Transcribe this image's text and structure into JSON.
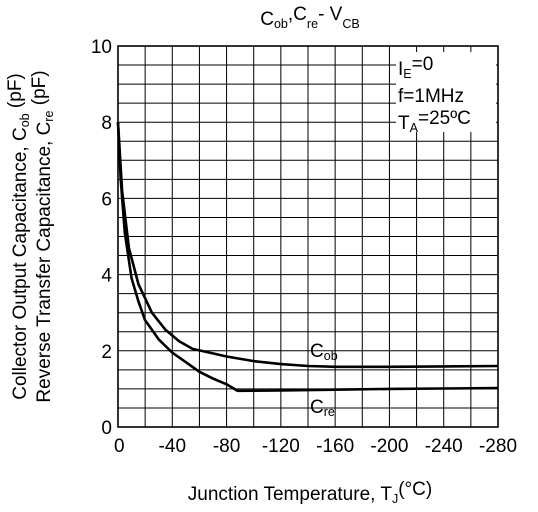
{
  "chart_data": {
    "type": "line",
    "title": {
      "parts": [
        {
          "text": "C",
          "sub": false
        },
        {
          "text": "ob",
          "sub": true
        },
        {
          "text": ",C",
          "sub": false
        },
        {
          "text": "re",
          "sub": true
        },
        {
          "text": "- V",
          "sub": false
        },
        {
          "text": "CB",
          "sub": true
        }
      ]
    },
    "xlabel": {
      "parts": [
        {
          "text": "Junction Temperature, T",
          "sub": false
        },
        {
          "text": "J",
          "sub": true
        },
        {
          "text": "(°C)",
          "sub": false
        }
      ]
    },
    "ylabel_lines": [
      {
        "parts": [
          {
            "text": "Collector Output Capacitance, C",
            "sub": false
          },
          {
            "text": "ob",
            "sub": true
          },
          {
            "text": " (pF)",
            "sub": false
          }
        ]
      },
      {
        "parts": [
          {
            "text": "Reverse Transfer Capacitance, C",
            "sub": false
          },
          {
            "text": "re",
            "sub": true
          },
          {
            "text": " (pF)",
            "sub": false
          }
        ]
      }
    ],
    "xlim": [
      0,
      -280
    ],
    "ylim": [
      0,
      10
    ],
    "x_ticks": [
      "0",
      "-40",
      "-80",
      "-120",
      "-160",
      "-200",
      "-240",
      "-280"
    ],
    "y_ticks": [
      "0",
      "2",
      "4",
      "6",
      "8",
      "10"
    ],
    "grid": true,
    "conditions": [
      {
        "parts": [
          {
            "text": "I",
            "sub": false
          },
          {
            "text": "E",
            "sub": true
          },
          {
            "text": "=0",
            "sub": false
          }
        ]
      },
      {
        "parts": [
          {
            "text": "f=1MHz",
            "sub": false
          }
        ]
      },
      {
        "parts": [
          {
            "text": "T",
            "sub": false
          },
          {
            "text": "A",
            "sub": true
          },
          {
            "text": "=25ºC",
            "sub": false
          }
        ]
      }
    ],
    "series": [
      {
        "name": "C_ob",
        "label": {
          "parts": [
            {
              "text": "C",
              "sub": false
            },
            {
              "text": "ob",
              "sub": true
            }
          ]
        },
        "x": [
          0,
          -3,
          -8,
          -15,
          -25,
          -35,
          -45,
          -55,
          -65,
          -80,
          -100,
          -120,
          -140,
          -160,
          -200,
          -240,
          -280
        ],
        "y": [
          8.0,
          6.2,
          4.7,
          3.75,
          3.0,
          2.55,
          2.25,
          2.05,
          1.97,
          1.85,
          1.73,
          1.65,
          1.6,
          1.58,
          1.58,
          1.59,
          1.6
        ]
      },
      {
        "name": "C_re",
        "label": {
          "parts": [
            {
              "text": "C",
              "sub": false
            },
            {
              "text": "re",
              "sub": true
            }
          ]
        },
        "x": [
          0,
          -2,
          -5,
          -10,
          -15,
          -20,
          -25,
          -30,
          -40,
          -50,
          -60,
          -70,
          -80,
          -88,
          -120,
          -160,
          -200,
          -240,
          -280
        ],
        "y": [
          8.0,
          6.5,
          5.1,
          3.9,
          3.3,
          2.8,
          2.55,
          2.3,
          1.95,
          1.7,
          1.45,
          1.27,
          1.12,
          0.95,
          0.96,
          0.98,
          1.0,
          1.01,
          1.02
        ]
      }
    ]
  }
}
